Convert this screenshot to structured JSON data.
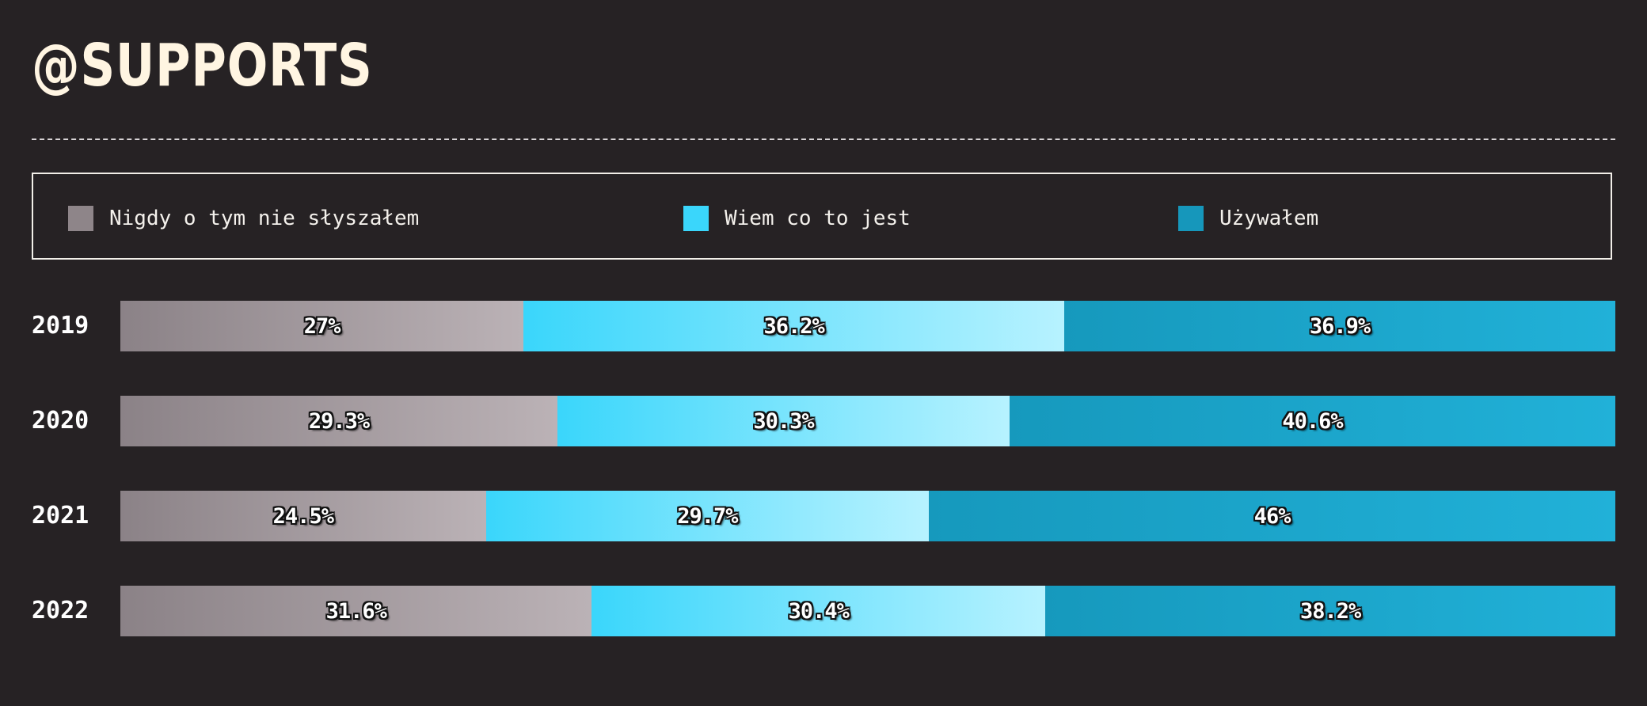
{
  "title": "@SUPPORTS",
  "legend": {
    "items": [
      {
        "label": "Nigdy o tym nie słyszałem",
        "color": "#8e8589"
      },
      {
        "label": "Wiem co to jest",
        "color": "#3ad6fb"
      },
      {
        "label": "Używałem",
        "color": "#1697bb"
      }
    ]
  },
  "chart_data": {
    "type": "bar",
    "orientation": "horizontal",
    "stacked": true,
    "categories": [
      "2019",
      "2020",
      "2021",
      "2022"
    ],
    "series": [
      {
        "name": "Nigdy o tym nie słyszałem",
        "values": [
          27,
          29.3,
          24.5,
          31.6
        ],
        "labels": [
          "27%",
          "29.3%",
          "24.5%",
          "31.6%"
        ]
      },
      {
        "name": "Wiem co to jest",
        "values": [
          36.2,
          30.3,
          29.7,
          30.4
        ],
        "labels": [
          "36.2%",
          "30.3%",
          "29.7%",
          "30.4%"
        ]
      },
      {
        "name": "Używałem",
        "values": [
          36.9,
          40.6,
          46,
          38.2
        ],
        "labels": [
          "36.9%",
          "40.6%",
          "46%",
          "38.2%"
        ]
      }
    ],
    "title": "@SUPPORTS",
    "xlabel": "",
    "ylabel": "",
    "xlim": [
      0,
      100
    ],
    "grid": false,
    "legend_position": "top"
  }
}
